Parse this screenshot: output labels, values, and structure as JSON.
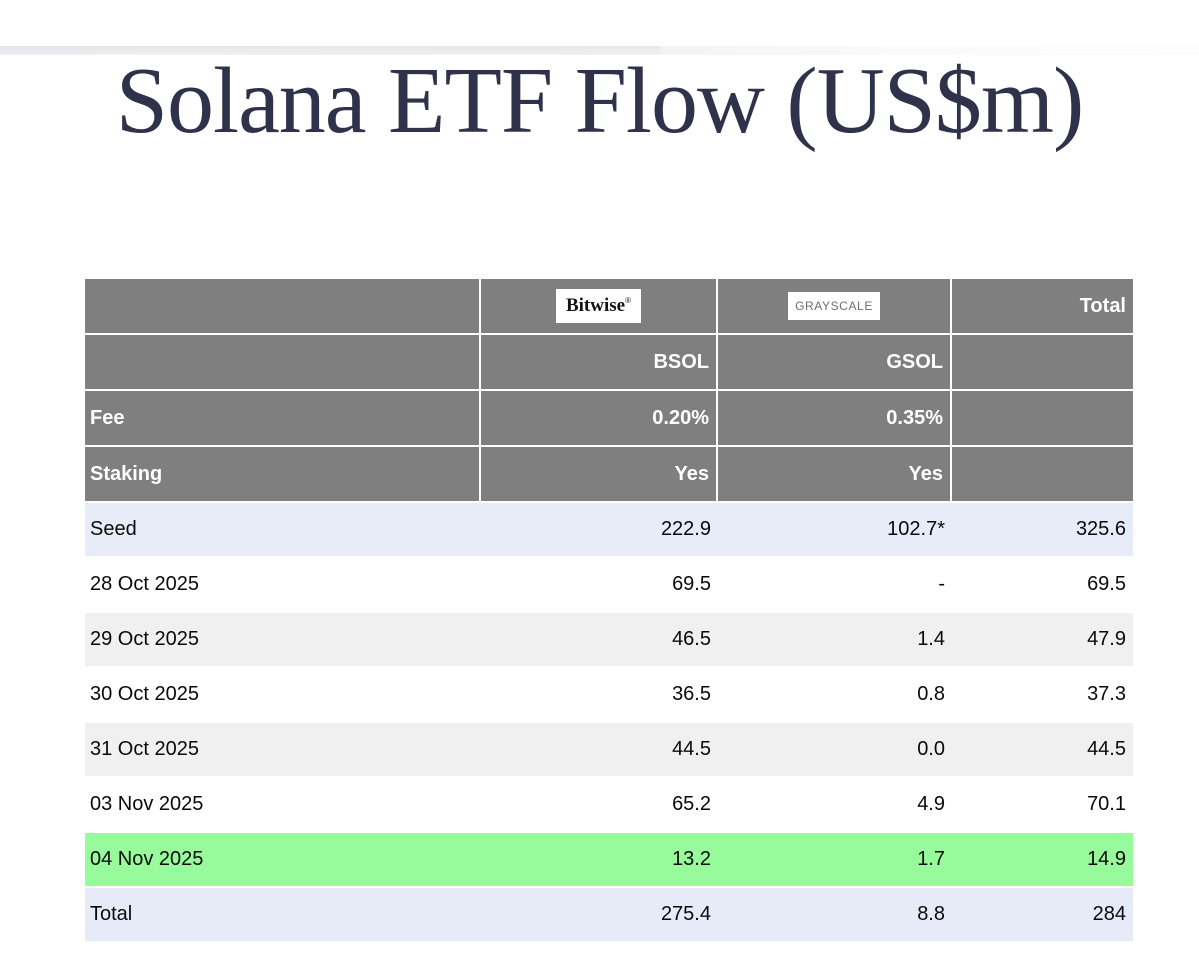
{
  "header": {
    "title": "Solana ETF Flow (US$m)"
  },
  "table": {
    "logos": {
      "bitwise": "Bitwise",
      "bitwise_mark": "®",
      "grayscale": "GRAYSCALE"
    },
    "total_header": "Total",
    "tickers": {
      "bsol": "BSOL",
      "gsol": "GSOL"
    },
    "fee": {
      "label": "Fee",
      "bsol": "0.20%",
      "gsol": "0.35%"
    },
    "staking": {
      "label": "Staking",
      "bsol": "Yes",
      "gsol": "Yes"
    },
    "rows": [
      {
        "label": "Seed",
        "bsol": "222.9",
        "gsol": "102.7*",
        "total": "325.6"
      },
      {
        "label": "28 Oct 2025",
        "bsol": "69.5",
        "gsol": "-",
        "total": "69.5"
      },
      {
        "label": "29 Oct 2025",
        "bsol": "46.5",
        "gsol": "1.4",
        "total": "47.9"
      },
      {
        "label": "30 Oct 2025",
        "bsol": "36.5",
        "gsol": "0.8",
        "total": "37.3"
      },
      {
        "label": "31 Oct 2025",
        "bsol": "44.5",
        "gsol": "0.0",
        "total": "44.5"
      },
      {
        "label": "03 Nov 2025",
        "bsol": "65.2",
        "gsol": "4.9",
        "total": "70.1"
      },
      {
        "label": "04 Nov 2025",
        "bsol": "13.2",
        "gsol": "1.7",
        "total": "14.9"
      },
      {
        "label": "Total",
        "bsol": "275.4",
        "gsol": "8.8",
        "total": "284"
      }
    ],
    "colors": {
      "header_bg": "#7f7f7f",
      "row_seed_bg": "#e8ecf8",
      "row_alt_bg": "#f0f0f0",
      "row_highlight_bg": "#97fb9b",
      "row_total_bg": "#e7ebf7",
      "title_color": "#30324c"
    },
    "highlighted_row": "04 Nov 2025"
  },
  "chart_data": {
    "type": "table",
    "title": "Solana ETF Flow (US$m)",
    "categories": [
      "Seed",
      "28 Oct 2025",
      "29 Oct 2025",
      "30 Oct 2025",
      "31 Oct 2025",
      "03 Nov 2025",
      "04 Nov 2025",
      "Total"
    ],
    "series": [
      {
        "name": "BSOL",
        "issuer": "Bitwise",
        "fee": "0.20%",
        "staking": "Yes",
        "values": [
          222.9,
          69.5,
          46.5,
          36.5,
          44.5,
          65.2,
          13.2,
          275.4
        ]
      },
      {
        "name": "GSOL",
        "issuer": "GRAYSCALE",
        "fee": "0.35%",
        "staking": "Yes",
        "values": [
          102.7,
          null,
          1.4,
          0.8,
          0.0,
          4.9,
          1.7,
          8.8
        ]
      },
      {
        "name": "Total",
        "values": [
          325.6,
          69.5,
          47.9,
          37.3,
          44.5,
          70.1,
          14.9,
          284
        ]
      }
    ],
    "annotations": {
      "seed_gsol": "102.7*",
      "highlighted_row": "04 Nov 2025"
    }
  }
}
